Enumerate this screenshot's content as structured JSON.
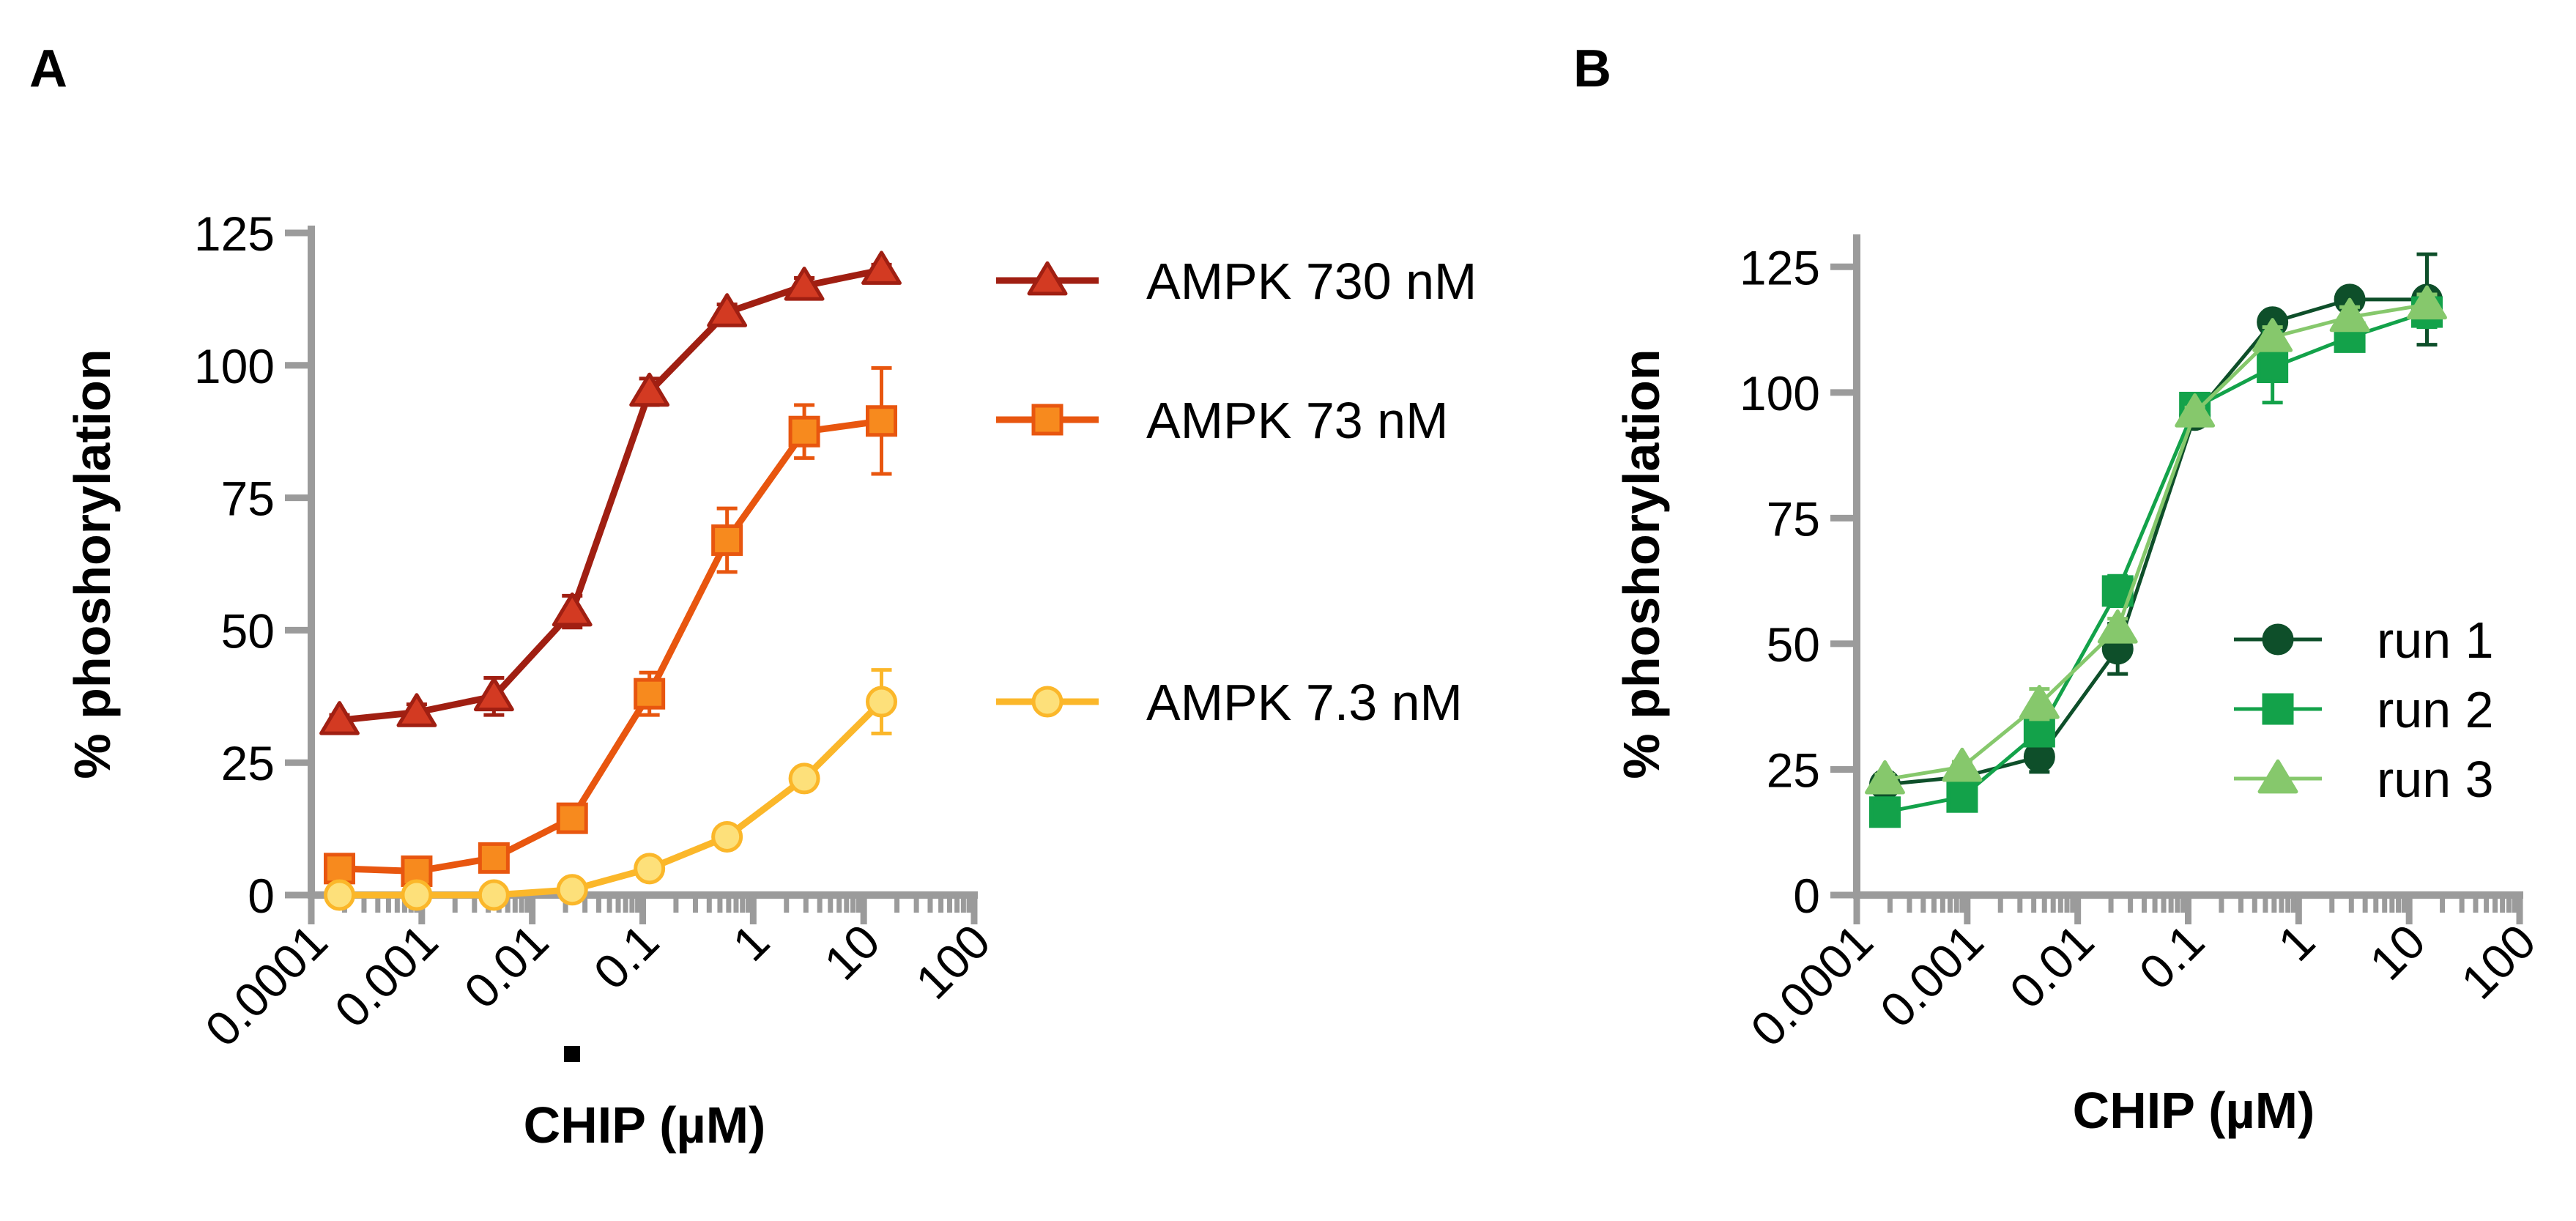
{
  "figure": {
    "panel_a_label": "A",
    "panel_b_label": "B"
  },
  "chart_data": [
    {
      "type": "line",
      "panel": "A",
      "ylabel": "% phoshorylation",
      "xlabel": "CHIP (µM)",
      "x_scale": "log",
      "xlim": [
        0.0001,
        100
      ],
      "ylim": [
        0,
        125
      ],
      "y_ticks": [
        0,
        25,
        50,
        75,
        100,
        125
      ],
      "x_ticks": [
        0.0001,
        0.001,
        0.01,
        0.1,
        1,
        10,
        100
      ],
      "x_tick_labels": [
        "0.0001",
        "0.001",
        "0.01",
        "0.1",
        "1",
        "10",
        "100"
      ],
      "legend_position": "right",
      "x": [
        0.00018,
        0.0009,
        0.0045,
        0.023,
        0.115,
        0.58,
        2.9,
        14.5
      ],
      "series": [
        {
          "name": "AMPK 730 nM",
          "color": "#a01f12",
          "fill": "#d33a22",
          "marker": "triangle",
          "values": [
            33,
            34.5,
            37.5,
            53.5,
            95,
            110,
            115,
            118
          ],
          "errors": [
            1,
            1.5,
            3.5,
            3,
            2.5,
            1.5,
            1.5,
            1
          ]
        },
        {
          "name": "AMPK 73 nM",
          "color": "#e8560f",
          "fill": "#f78a1e",
          "marker": "square",
          "values": [
            5,
            4.5,
            7,
            14.5,
            38,
            67,
            87.5,
            89.5
          ],
          "errors": [
            1,
            1,
            1,
            1.5,
            4,
            6,
            5,
            10
          ]
        },
        {
          "name": "AMPK 7.3 nM",
          "color": "#fbb72a",
          "fill": "#fde07a",
          "marker": "circle",
          "values": [
            0,
            0,
            0,
            1,
            5,
            11,
            22,
            36.5
          ],
          "errors": [
            0.5,
            0.5,
            0.5,
            0.5,
            1,
            1,
            1.5,
            6
          ]
        }
      ]
    },
    {
      "type": "line",
      "panel": "B",
      "ylabel": "% phoshorylation",
      "xlabel": "CHIP (µM)",
      "x_scale": "log",
      "xlim": [
        0.0001,
        100
      ],
      "ylim": [
        0,
        130
      ],
      "y_ticks": [
        0,
        25,
        50,
        75,
        100,
        125
      ],
      "x_ticks": [
        0.0001,
        0.001,
        0.01,
        0.1,
        1,
        10,
        100
      ],
      "x_tick_labels": [
        "0.0001",
        "0.001",
        "0.01",
        "0.1",
        "1",
        "10",
        "100"
      ],
      "legend_position": "lower-right",
      "x": [
        0.00018,
        0.0009,
        0.0045,
        0.023,
        0.115,
        0.58,
        2.9,
        14.5
      ],
      "series": [
        {
          "name": "run 1",
          "color": "#0e4f2a",
          "fill": "#0e4f2a",
          "marker": "circle",
          "values": [
            22,
            23.5,
            27.5,
            49,
            95.5,
            114,
            118.5,
            118.5
          ],
          "errors": [
            1,
            1,
            3,
            5,
            1.5,
            1,
            2,
            9
          ]
        },
        {
          "name": "run 2",
          "color": "#13a24a",
          "fill": "#13a24a",
          "marker": "square",
          "values": [
            16.5,
            19.5,
            32.5,
            60.5,
            97,
            105,
            111,
            116
          ],
          "errors": [
            1,
            1,
            2,
            3,
            1,
            7,
            2,
            3
          ]
        },
        {
          "name": "run 3",
          "color": "#86c86c",
          "fill": "#86c86c",
          "marker": "triangle",
          "values": [
            23,
            25.5,
            38,
            53,
            96,
            111,
            115,
            117.5
          ],
          "errors": [
            1,
            1,
            3,
            2,
            1,
            2,
            2,
            2
          ]
        }
      ]
    }
  ]
}
